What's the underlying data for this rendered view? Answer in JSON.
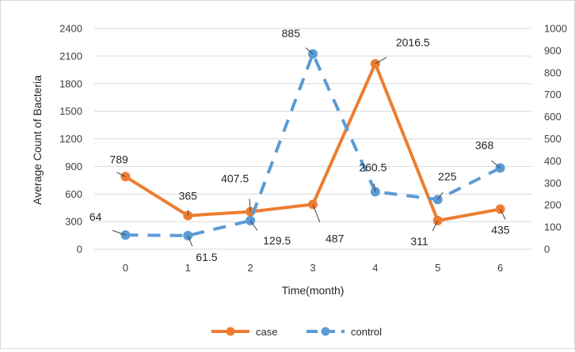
{
  "chart_data": {
    "type": "line",
    "xlabel": "Time(month)",
    "ylabel": "Average Count of Bacteria",
    "categories": [
      "0",
      "1",
      "2",
      "3",
      "4",
      "5",
      "6"
    ],
    "ylim_left": [
      0,
      2400
    ],
    "ylim_right": [
      0,
      1000
    ],
    "yticks_left": [
      0,
      300,
      600,
      900,
      1200,
      1500,
      1800,
      2100,
      2400
    ],
    "yticks_right": [
      0,
      100,
      200,
      300,
      400,
      500,
      600,
      700,
      800,
      900,
      1000
    ],
    "grid": "horizontal",
    "legend_position": "bottom",
    "series": [
      {
        "name": "case",
        "axis": "left",
        "color": "#ED7D31",
        "style": "solid",
        "values": [
          789,
          365,
          407.5,
          487,
          2016.5,
          311,
          435
        ],
        "labels": [
          "789",
          "365",
          "407.5",
          "487",
          "2016.5",
          "311",
          "435"
        ]
      },
      {
        "name": "control",
        "axis": "right",
        "color": "#5B9BD5",
        "style": "dashed",
        "values": [
          64,
          61.5,
          129.5,
          885,
          260.5,
          225,
          368
        ],
        "labels": [
          "64",
          "61.5",
          "129.5",
          "885",
          "260.5",
          "225",
          "368"
        ]
      }
    ]
  }
}
